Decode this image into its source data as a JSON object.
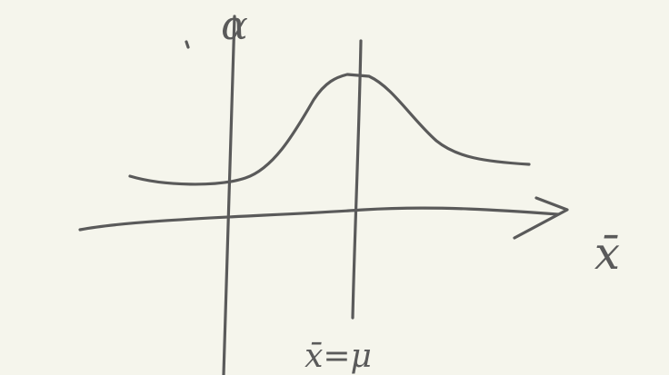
{
  "axes": {
    "y_label": "α",
    "x_label": "x̄"
  },
  "annotations": {
    "mean_line": "x̄=μ"
  }
}
